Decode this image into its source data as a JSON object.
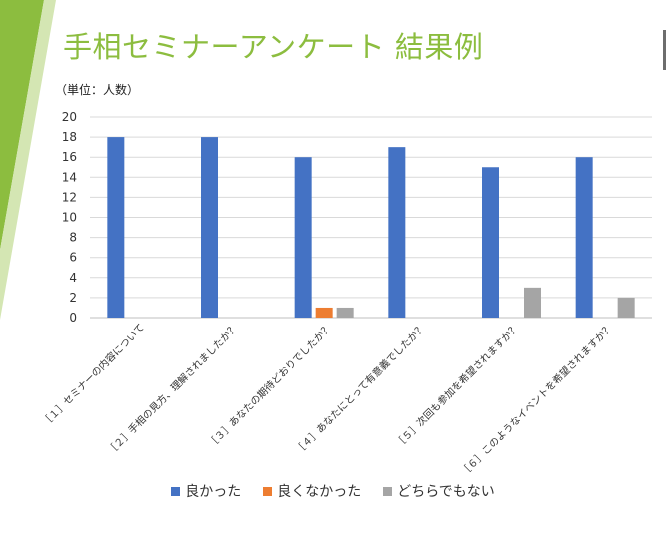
{
  "slide": {
    "title": "手相セミナーアンケート 結果例",
    "unit_label": "（単位：人数）"
  },
  "colors": {
    "title": "#8cbd3f",
    "accent_green": "#8cbd3f",
    "series_good": "#4472c4",
    "series_not_good": "#ed7d31",
    "series_neither": "#a5a5a5"
  },
  "chart_data": {
    "type": "bar",
    "categories": [
      "［１］セミナーの内容について",
      "［２］手相の見方、理解されましたか？",
      "［３］あなたの期待どおりでしたか？",
      "［４］あなたにとって有意義でしたか？",
      "［５］次回も参加を希望されますか？",
      "［６］このようなイベントを希望されますか？"
    ],
    "series": [
      {
        "name": "良かった",
        "color": "#4472c4",
        "values": [
          18,
          18,
          16,
          17,
          15,
          16
        ]
      },
      {
        "name": "良くなかった",
        "color": "#ed7d31",
        "values": [
          0,
          0,
          1,
          0,
          0,
          0
        ]
      },
      {
        "name": "どちらでもない",
        "color": "#a5a5a5",
        "values": [
          0,
          0,
          1,
          0,
          3,
          2
        ]
      }
    ],
    "ylim": [
      0,
      20
    ],
    "yticks": [
      0,
      2,
      4,
      6,
      8,
      10,
      12,
      14,
      16,
      18,
      20
    ],
    "grid": true,
    "legend_position": "bottom"
  }
}
